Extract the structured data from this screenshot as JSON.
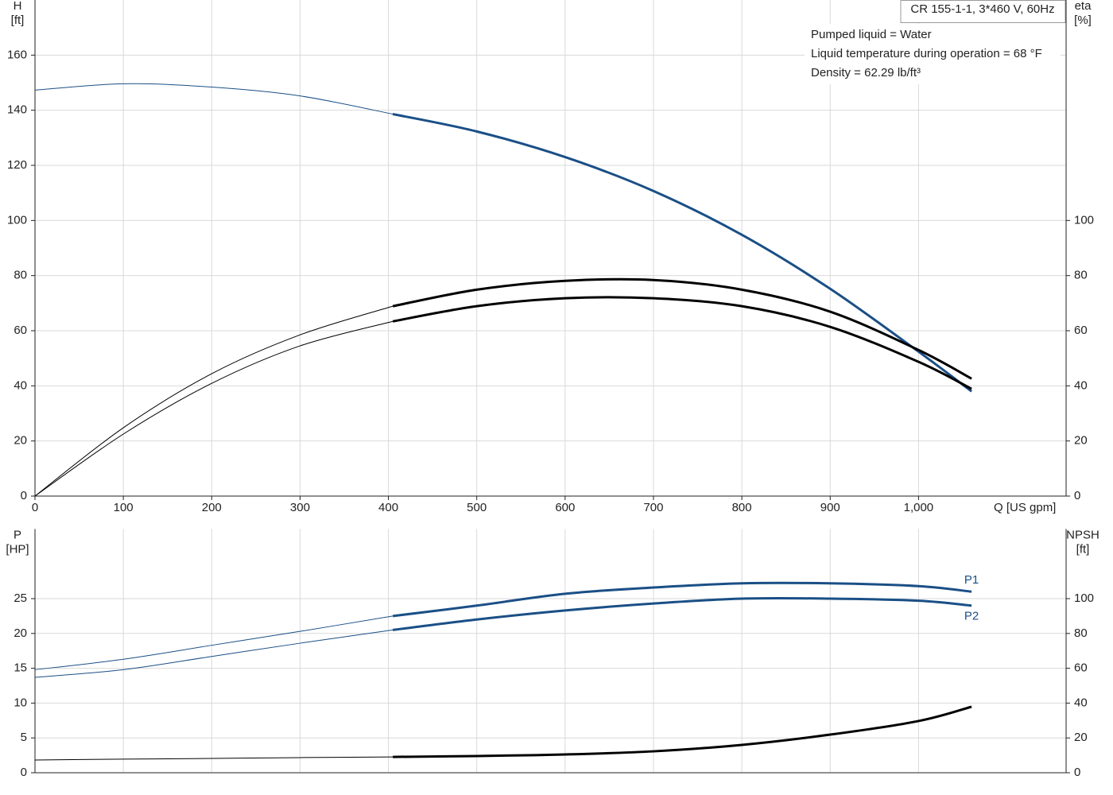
{
  "chart_data": [
    {
      "type": "line",
      "title": "CR 155-1-1, 3*460 V, 60Hz",
      "annotations": [
        "Pumped liquid = Water",
        "Liquid temperature during operation = 68 °F",
        "Density = 62.29 lb/ft³"
      ],
      "ylabel": [
        "H",
        "[ft]"
      ],
      "y2label": [
        "eta",
        "[%]"
      ],
      "xlabel": "Q [US gpm]",
      "x": [
        0,
        100,
        200,
        300,
        405,
        500,
        600,
        700,
        800,
        900,
        1000,
        1060
      ],
      "xlim": [
        0,
        1167
      ],
      "xticks": [
        0,
        100,
        200,
        300,
        400,
        500,
        600,
        700,
        800,
        900,
        {
          "value": 1000,
          "label": "1,000"
        }
      ],
      "ylim": [
        0,
        180
      ],
      "yticks": [
        0,
        20,
        40,
        60,
        80,
        100,
        120,
        140,
        160
      ],
      "y2lim": [
        0,
        180
      ],
      "y2ticks": [
        0,
        20,
        40,
        60,
        80,
        100
      ],
      "grid": true,
      "bold_from": 405,
      "series": [
        {
          "color": "#1a4f86",
          "values": [
            147.3,
            149.6,
            148.4,
            145.2,
            138.6,
            132.3,
            123.0,
            110.7,
            94.8,
            75.2,
            52.4,
            38.0
          ]
        },
        {
          "color": "#000000",
          "axis": "y2",
          "values": [
            0,
            24.8,
            44.4,
            58.5,
            68.9,
            74.9,
            78.1,
            78.4,
            74.9,
            66.9,
            53.0,
            42.6
          ]
        },
        {
          "color": "#000000",
          "axis": "y2",
          "values": [
            0,
            22.5,
            40.9,
            54.5,
            63.4,
            68.9,
            71.8,
            71.8,
            68.9,
            61.4,
            48.7,
            38.9
          ]
        }
      ]
    },
    {
      "type": "line",
      "ylabel": [
        "P",
        "[HP]"
      ],
      "y2label": [
        "NPSH",
        "[ft]"
      ],
      "x": [
        0,
        100,
        200,
        300,
        405,
        500,
        600,
        700,
        800,
        900,
        1000,
        1060
      ],
      "xlim": [
        0,
        1167
      ],
      "ylim": [
        0,
        35
      ],
      "yticks": [
        0,
        5,
        10,
        15,
        20,
        25
      ],
      "y2lim": [
        0,
        140
      ],
      "y2ticks": [
        0,
        20,
        40,
        60,
        80,
        100
      ],
      "grid": true,
      "bold_from": 405,
      "series": [
        {
          "name": "P1",
          "color": "#1a4f86",
          "values": [
            14.8,
            16.3,
            18.3,
            20.3,
            22.5,
            24.0,
            25.7,
            26.6,
            27.2,
            27.2,
            26.8,
            26.0
          ]
        },
        {
          "name": "P2",
          "color": "#1a4f86",
          "values": [
            13.7,
            14.8,
            16.7,
            18.6,
            20.5,
            22.0,
            23.3,
            24.3,
            25.0,
            25.0,
            24.7,
            24.0
          ]
        },
        {
          "color": "#000000",
          "axis": "y2",
          "values": [
            7.3,
            7.8,
            8.2,
            8.7,
            9.1,
            9.6,
            10.5,
            12.3,
            16.0,
            21.9,
            29.7,
            37.9
          ]
        }
      ]
    }
  ]
}
